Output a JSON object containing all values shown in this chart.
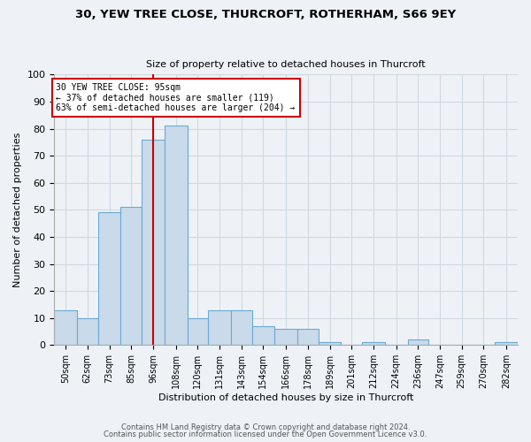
{
  "title1": "30, YEW TREE CLOSE, THURCROFT, ROTHERHAM, S66 9EY",
  "title2": "Size of property relative to detached houses in Thurcroft",
  "xlabel": "Distribution of detached houses by size in Thurcroft",
  "ylabel": "Number of detached properties",
  "footer1": "Contains HM Land Registry data © Crown copyright and database right 2024.",
  "footer2": "Contains public sector information licensed under the Open Government Licence v3.0.",
  "categories": [
    "50sqm",
    "62sqm",
    "73sqm",
    "85sqm",
    "96sqm",
    "108sqm",
    "120sqm",
    "131sqm",
    "143sqm",
    "154sqm",
    "166sqm",
    "178sqm",
    "189sqm",
    "201sqm",
    "212sqm",
    "224sqm",
    "236sqm",
    "247sqm",
    "259sqm",
    "270sqm",
    "282sqm"
  ],
  "values": [
    13,
    10,
    49,
    51,
    76,
    81,
    10,
    13,
    13,
    7,
    6,
    6,
    1,
    0,
    1,
    0,
    2,
    0,
    0,
    0,
    1
  ],
  "bar_color": "#c9daea",
  "bar_edge_color": "#6aaad4",
  "grid_color": "#d0d8e0",
  "bg_color": "#eef2f7",
  "annotation_line1": "30 YEW TREE CLOSE: 95sqm",
  "annotation_line2": "← 37% of detached houses are smaller (119)",
  "annotation_line3": "63% of semi-detached houses are larger (204) →",
  "annotation_box_color": "#ffffff",
  "annotation_box_edge": "#cc0000",
  "property_line_x": 96,
  "ylim": [
    0,
    100
  ],
  "yticks": [
    0,
    10,
    20,
    30,
    40,
    50,
    60,
    70,
    80,
    90,
    100
  ],
  "bin_edges": [
    44,
    56,
    67,
    79,
    90,
    102,
    114,
    125,
    137,
    148,
    160,
    172,
    183,
    195,
    206,
    218,
    230,
    241,
    253,
    264,
    276,
    288
  ]
}
